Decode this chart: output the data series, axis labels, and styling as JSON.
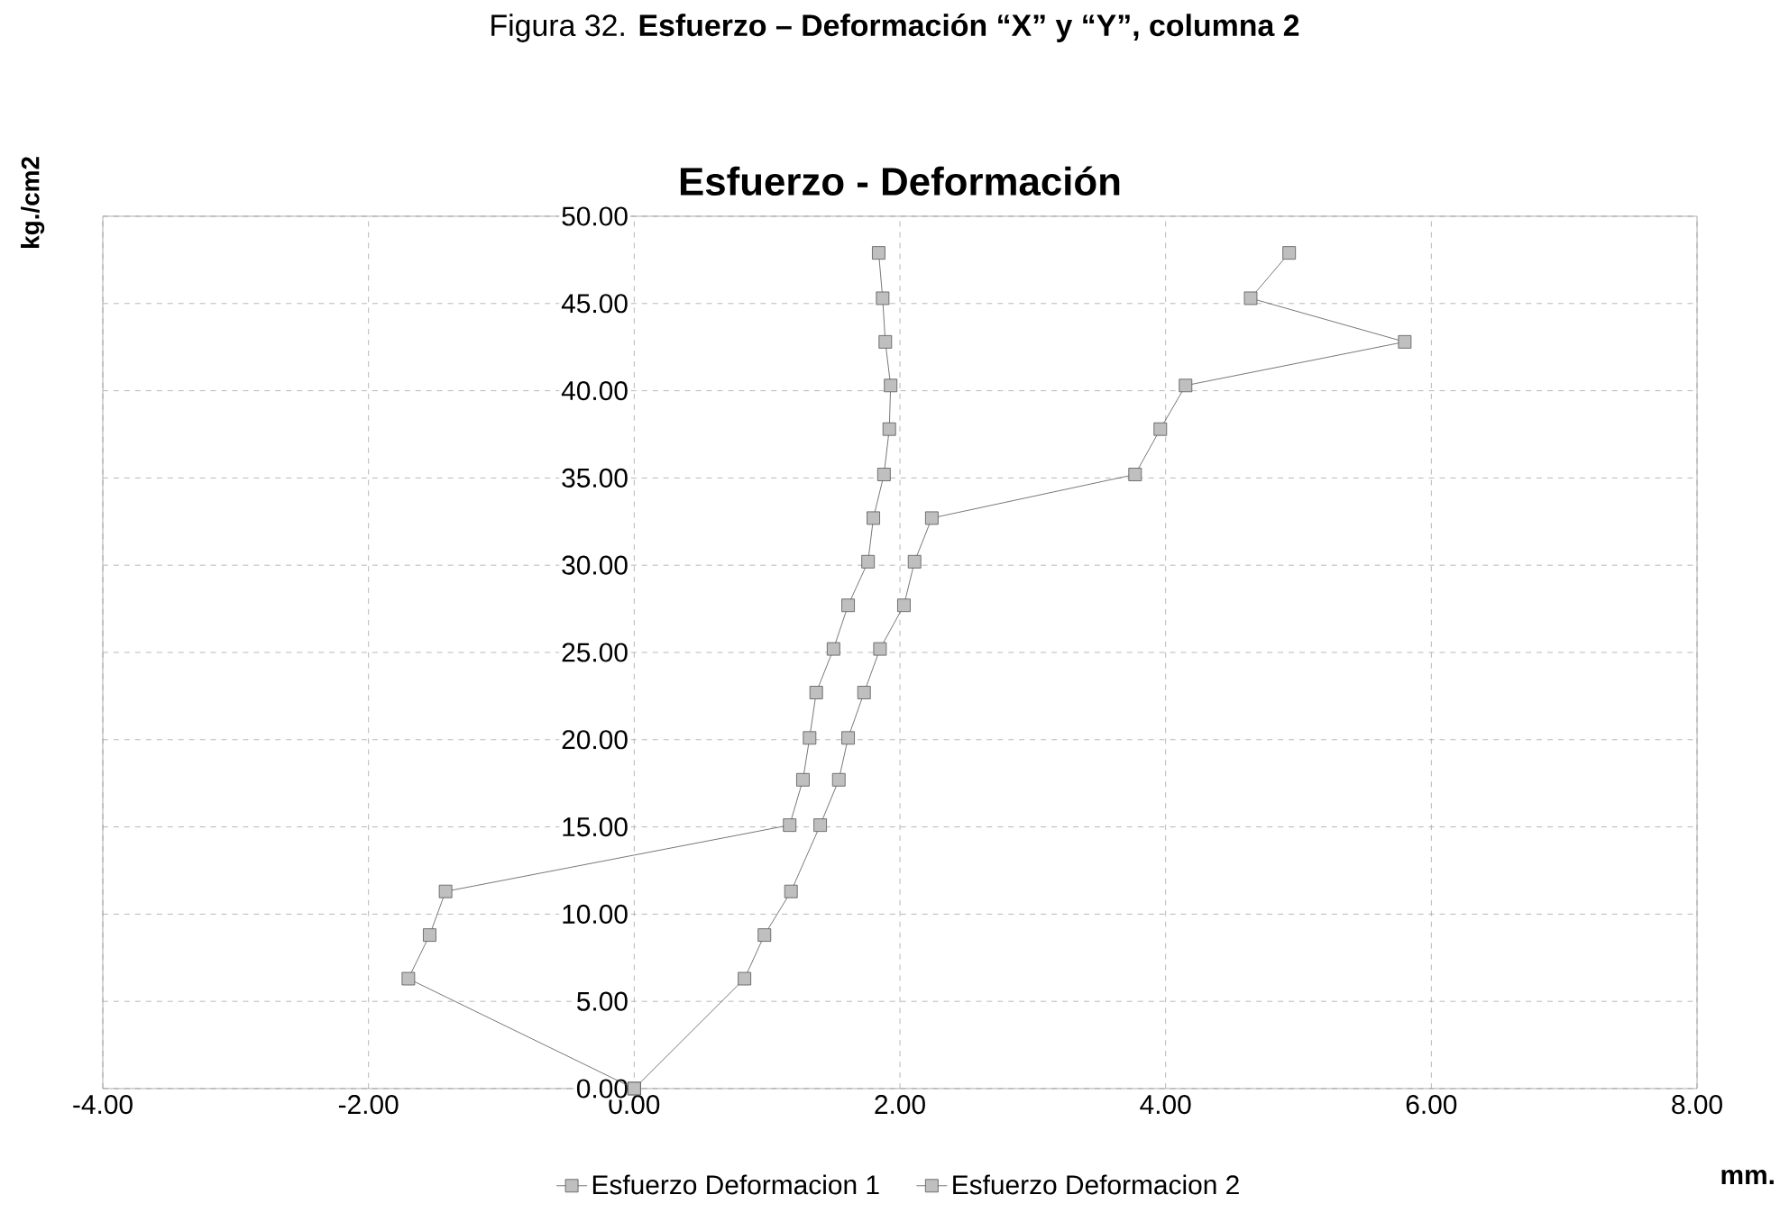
{
  "chart_data": {
    "type": "line",
    "title": "Esfuerzo - Deformación",
    "subtitle": "Figura 32.    **Esfuerzo – Deformación “X” y “Y”, columna 2**",
    "xlabel": "mm.",
    "ylabel": "kg./cm2",
    "xlim": [
      -4,
      8
    ],
    "ylim": [
      0,
      50
    ],
    "xticks": [
      {
        "value": -4,
        "label": "-4.00"
      },
      {
        "value": -2,
        "label": "-2.00"
      },
      {
        "value": 0,
        "label": "0.00"
      },
      {
        "value": 2,
        "label": "2.00"
      },
      {
        "value": 4,
        "label": "4.00"
      },
      {
        "value": 6,
        "label": "6.00"
      },
      {
        "value": 8,
        "label": "8.00"
      }
    ],
    "yticks": [
      {
        "value": 0,
        "label": "0.00"
      },
      {
        "value": 5,
        "label": "5.00"
      },
      {
        "value": 10,
        "label": "10.00"
      },
      {
        "value": 15,
        "label": "15.00"
      },
      {
        "value": 20,
        "label": "20.00"
      },
      {
        "value": 25,
        "label": "25.00"
      },
      {
        "value": 30,
        "label": "30.00"
      },
      {
        "value": 35,
        "label": "35.00"
      },
      {
        "value": 40,
        "label": "40.00"
      },
      {
        "value": 45,
        "label": "45.00"
      },
      {
        "value": 50,
        "label": "50.00"
      }
    ],
    "grid": true,
    "legend": "bottom",
    "marker": "square",
    "line_style": "solid",
    "series": [
      {
        "name": "Esfuerzo Deformacion 1",
        "color": "#555555",
        "x": [
          0,
          -1.7,
          -1.54,
          -1.42,
          1.17,
          1.27,
          1.32,
          1.37,
          1.5,
          1.61,
          1.76,
          1.8,
          1.88,
          1.92,
          1.93,
          1.89,
          1.87,
          1.84
        ],
        "values": [
          0,
          6.3,
          8.8,
          11.3,
          15.1,
          17.7,
          20.1,
          22.7,
          25.2,
          27.7,
          30.2,
          32.7,
          35.2,
          37.8,
          40.3,
          42.8,
          45.3,
          47.9
        ]
      },
      {
        "name": "Esfuerzo Deformacion 2",
        "color": "#555555",
        "x": [
          0,
          0.83,
          0.98,
          1.18,
          1.4,
          1.54,
          1.61,
          1.73,
          1.85,
          2.03,
          2.11,
          2.24,
          3.77,
          3.96,
          4.15,
          5.8,
          4.64,
          4.93
        ],
        "values": [
          0,
          6.3,
          8.8,
          11.3,
          15.1,
          17.7,
          20.1,
          22.7,
          25.2,
          27.7,
          30.2,
          32.7,
          35.2,
          37.8,
          40.3,
          42.8,
          45.3,
          47.9
        ]
      }
    ]
  }
}
